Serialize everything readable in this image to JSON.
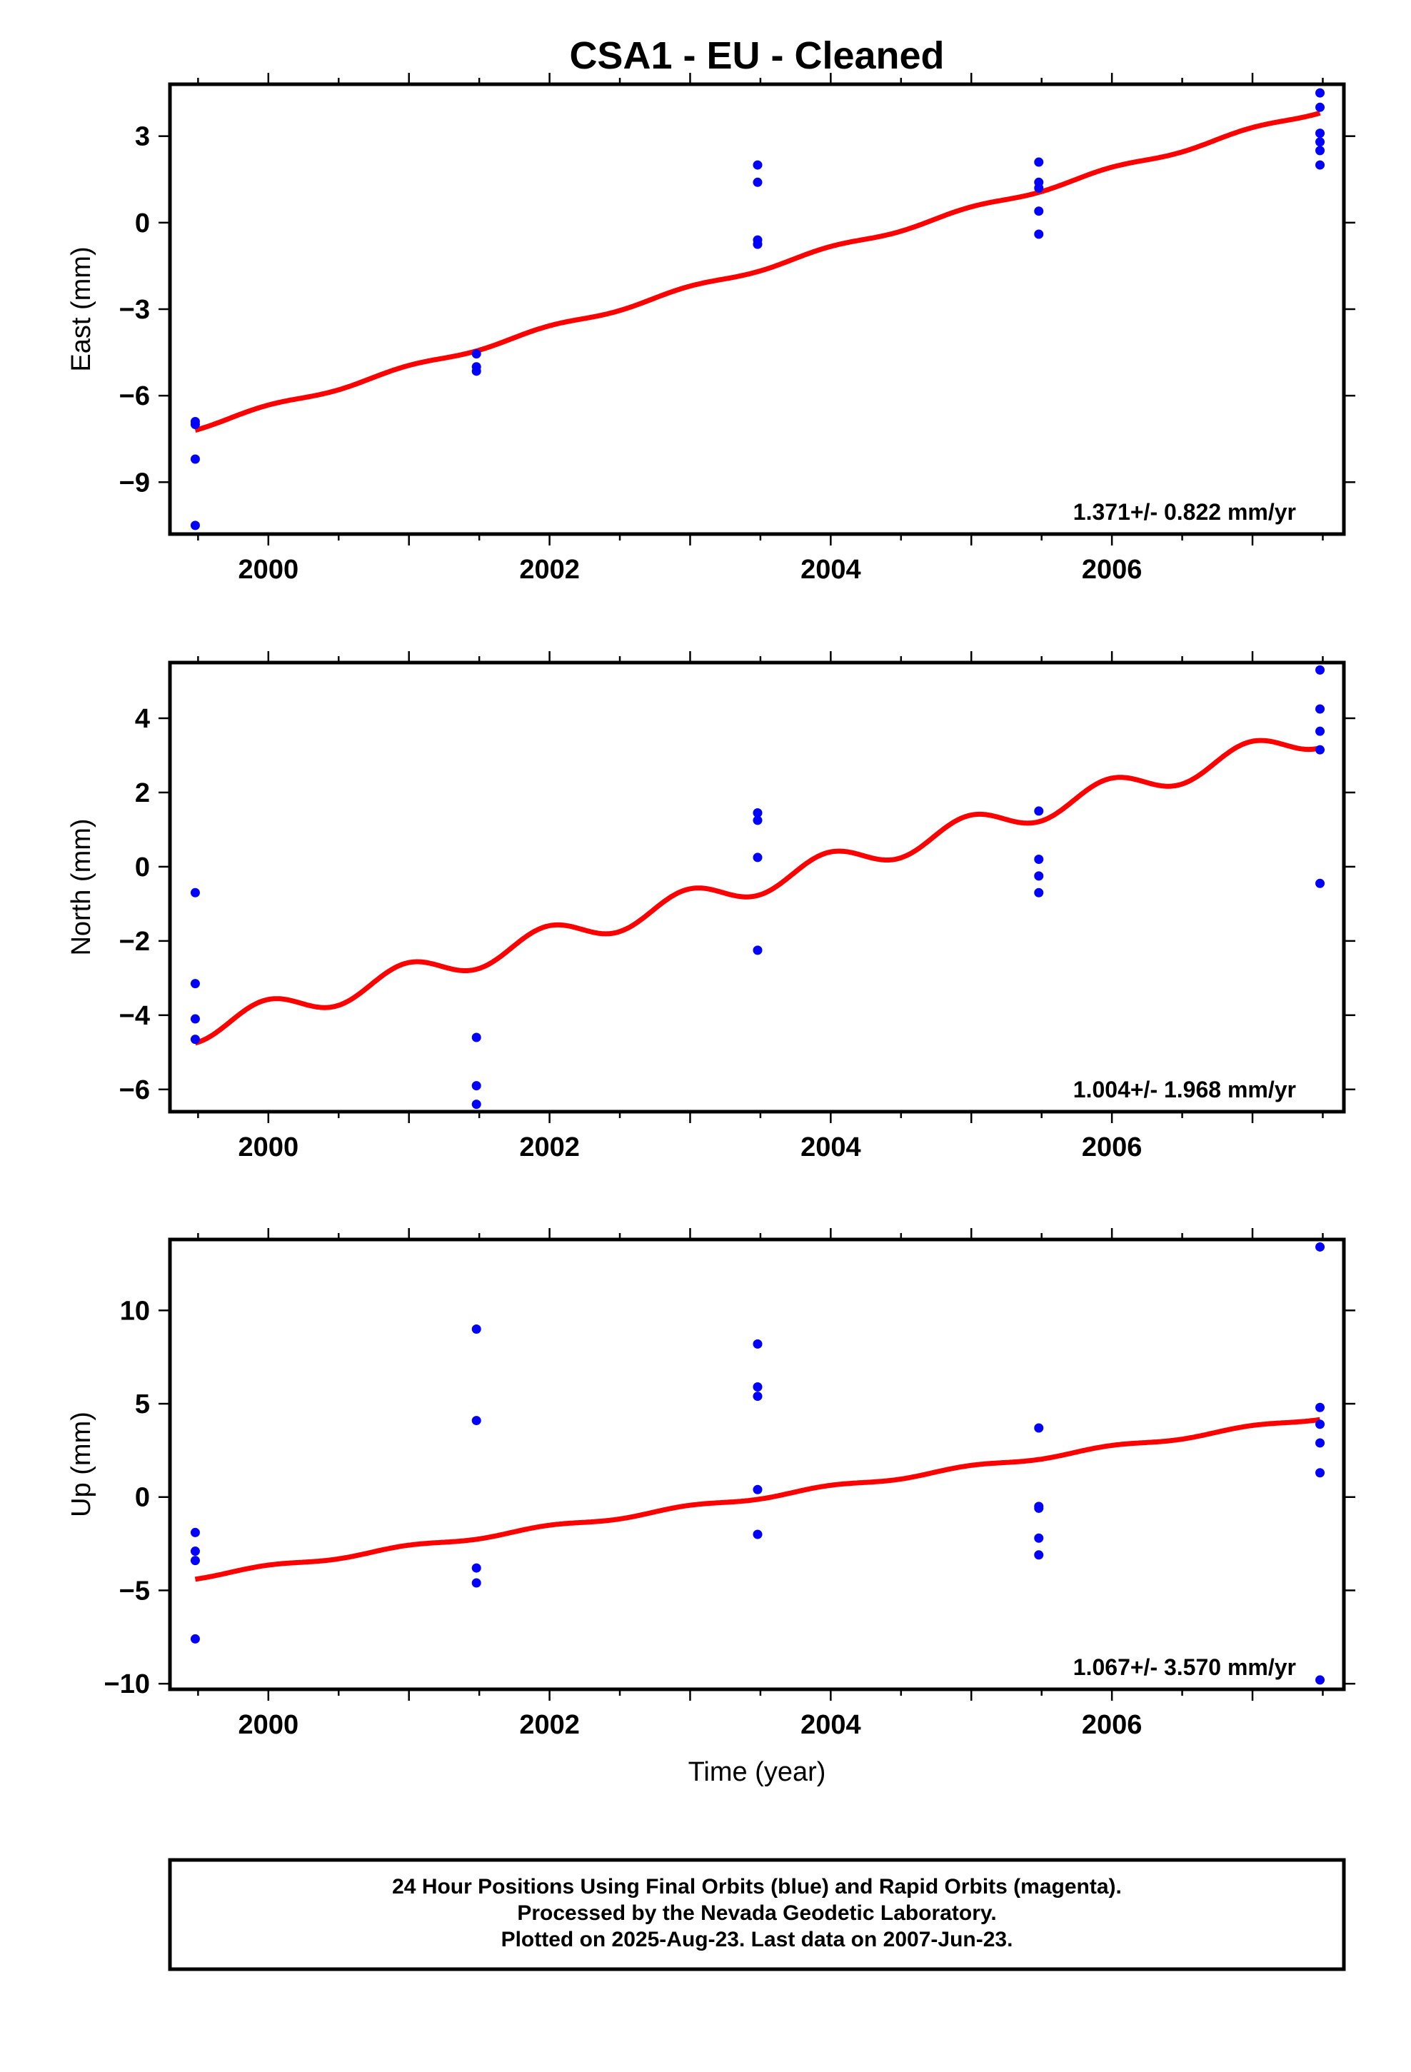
{
  "title": "CSA1  - EU - Cleaned",
  "colors": {
    "fit": "#ff0000",
    "points": "#0000ff",
    "frame": "#000000"
  },
  "chart_data": [
    {
      "type": "scatter",
      "name": "east",
      "ylabel": "East (mm)",
      "xlabel": "",
      "xlim": [
        1999.3,
        2007.65
      ],
      "ylim": [
        -10.8,
        4.8
      ],
      "yticks": [
        -9,
        -6,
        -3,
        0,
        3
      ],
      "ytick_labels": [
        "−9",
        "−6",
        "−3",
        "0",
        "3"
      ],
      "xticks": [
        2000,
        2002,
        2004,
        2006
      ],
      "xtick_labels": [
        "2000",
        "2002",
        "2004",
        "2006"
      ],
      "rate_label": "1.371+/- 0.822 mm/yr",
      "points": [
        {
          "x": 1999.48,
          "y": -6.9
        },
        {
          "x": 1999.48,
          "y": -7.0
        },
        {
          "x": 1999.48,
          "y": -8.2
        },
        {
          "x": 1999.48,
          "y": -10.5
        },
        {
          "x": 2001.48,
          "y": -4.55
        },
        {
          "x": 2001.48,
          "y": -5.0
        },
        {
          "x": 2001.48,
          "y": -5.15
        },
        {
          "x": 2003.48,
          "y": 2.0
        },
        {
          "x": 2003.48,
          "y": 1.4
        },
        {
          "x": 2003.48,
          "y": -0.6
        },
        {
          "x": 2003.48,
          "y": -0.75
        },
        {
          "x": 2005.48,
          "y": 2.1
        },
        {
          "x": 2005.48,
          "y": 1.4
        },
        {
          "x": 2005.48,
          "y": 1.2
        },
        {
          "x": 2005.48,
          "y": 0.4
        },
        {
          "x": 2005.48,
          "y": -0.4
        },
        {
          "x": 2007.48,
          "y": 4.5
        },
        {
          "x": 2007.48,
          "y": 4.0
        },
        {
          "x": 2007.48,
          "y": 3.1
        },
        {
          "x": 2007.48,
          "y": 2.8
        },
        {
          "x": 2007.48,
          "y": 2.5
        },
        {
          "x": 2007.48,
          "y": 2.0
        }
      ],
      "fit": {
        "x0": 1999.48,
        "x1": 2007.48,
        "y0": -7.2,
        "y1": 3.8,
        "amp": 0.08
      }
    },
    {
      "type": "scatter",
      "name": "north",
      "ylabel": "North (mm)",
      "xlabel": "",
      "xlim": [
        1999.3,
        2007.65
      ],
      "ylim": [
        -6.6,
        5.5
      ],
      "yticks": [
        -6,
        -4,
        -2,
        0,
        2,
        4
      ],
      "ytick_labels": [
        "−6",
        "−4",
        "−2",
        "0",
        "2",
        "4"
      ],
      "xticks": [
        2000,
        2002,
        2004,
        2006
      ],
      "xtick_labels": [
        "2000",
        "2002",
        "2004",
        "2006"
      ],
      "rate_label": "1.004+/- 1.968 mm/yr",
      "points": [
        {
          "x": 1999.48,
          "y": -0.7
        },
        {
          "x": 1999.48,
          "y": -3.15
        },
        {
          "x": 1999.48,
          "y": -4.1
        },
        {
          "x": 1999.48,
          "y": -4.65
        },
        {
          "x": 2001.48,
          "y": -4.6
        },
        {
          "x": 2001.48,
          "y": -5.9
        },
        {
          "x": 2001.48,
          "y": -6.4
        },
        {
          "x": 2003.48,
          "y": 1.45
        },
        {
          "x": 2003.48,
          "y": 1.25
        },
        {
          "x": 2003.48,
          "y": 0.25
        },
        {
          "x": 2003.48,
          "y": -2.25
        },
        {
          "x": 2005.48,
          "y": 1.5
        },
        {
          "x": 2005.48,
          "y": 0.2
        },
        {
          "x": 2005.48,
          "y": -0.25
        },
        {
          "x": 2005.48,
          "y": -0.7
        },
        {
          "x": 2007.48,
          "y": 5.3
        },
        {
          "x": 2007.48,
          "y": 4.25
        },
        {
          "x": 2007.48,
          "y": 3.65
        },
        {
          "x": 2007.48,
          "y": 3.15
        },
        {
          "x": 2007.48,
          "y": -0.45
        }
      ],
      "fit": {
        "x0": 1999.48,
        "x1": 2007.48,
        "y0": -4.75,
        "y1": 3.2,
        "amp": 0.33
      }
    },
    {
      "type": "scatter",
      "name": "up",
      "ylabel": "Up (mm)",
      "xlabel": "Time (year)",
      "xlim": [
        1999.3,
        2007.65
      ],
      "ylim": [
        -10.3,
        13.8
      ],
      "yticks": [
        -10,
        -5,
        0,
        5,
        10
      ],
      "ytick_labels": [
        "−10",
        "−5",
        "0",
        "5",
        "10"
      ],
      "xticks": [
        2000,
        2002,
        2004,
        2006
      ],
      "xtick_labels": [
        "2000",
        "2002",
        "2004",
        "2006"
      ],
      "rate_label": "1.067+/- 3.570 mm/yr",
      "points": [
        {
          "x": 1999.48,
          "y": -1.9
        },
        {
          "x": 1999.48,
          "y": -2.9
        },
        {
          "x": 1999.48,
          "y": -3.4
        },
        {
          "x": 1999.48,
          "y": -7.6
        },
        {
          "x": 2001.48,
          "y": 9.0
        },
        {
          "x": 2001.48,
          "y": 4.1
        },
        {
          "x": 2001.48,
          "y": -3.8
        },
        {
          "x": 2001.48,
          "y": -4.6
        },
        {
          "x": 2003.48,
          "y": 8.2
        },
        {
          "x": 2003.48,
          "y": 5.9
        },
        {
          "x": 2003.48,
          "y": 5.4
        },
        {
          "x": 2003.48,
          "y": 0.4
        },
        {
          "x": 2003.48,
          "y": -2.0
        },
        {
          "x": 2005.48,
          "y": 3.7
        },
        {
          "x": 2005.48,
          "y": -0.5
        },
        {
          "x": 2005.48,
          "y": -0.6
        },
        {
          "x": 2005.48,
          "y": -2.2
        },
        {
          "x": 2005.48,
          "y": -3.1
        },
        {
          "x": 2007.48,
          "y": 13.4
        },
        {
          "x": 2007.48,
          "y": 4.8
        },
        {
          "x": 2007.48,
          "y": 3.9
        },
        {
          "x": 2007.48,
          "y": 2.9
        },
        {
          "x": 2007.48,
          "y": 1.3
        },
        {
          "x": 2007.48,
          "y": -9.8
        }
      ],
      "fit": {
        "x0": 1999.48,
        "x1": 2007.48,
        "y0": -4.4,
        "y1": 4.15,
        "amp": 0.1
      }
    }
  ],
  "footer": {
    "line1": "24 Hour Positions Using Final Orbits (blue) and Rapid Orbits (magenta).",
    "line2": "Processed by the Nevada Geodetic Laboratory.",
    "line3": "Plotted on 2025-Aug-23. Last data on 2007-Jun-23."
  }
}
